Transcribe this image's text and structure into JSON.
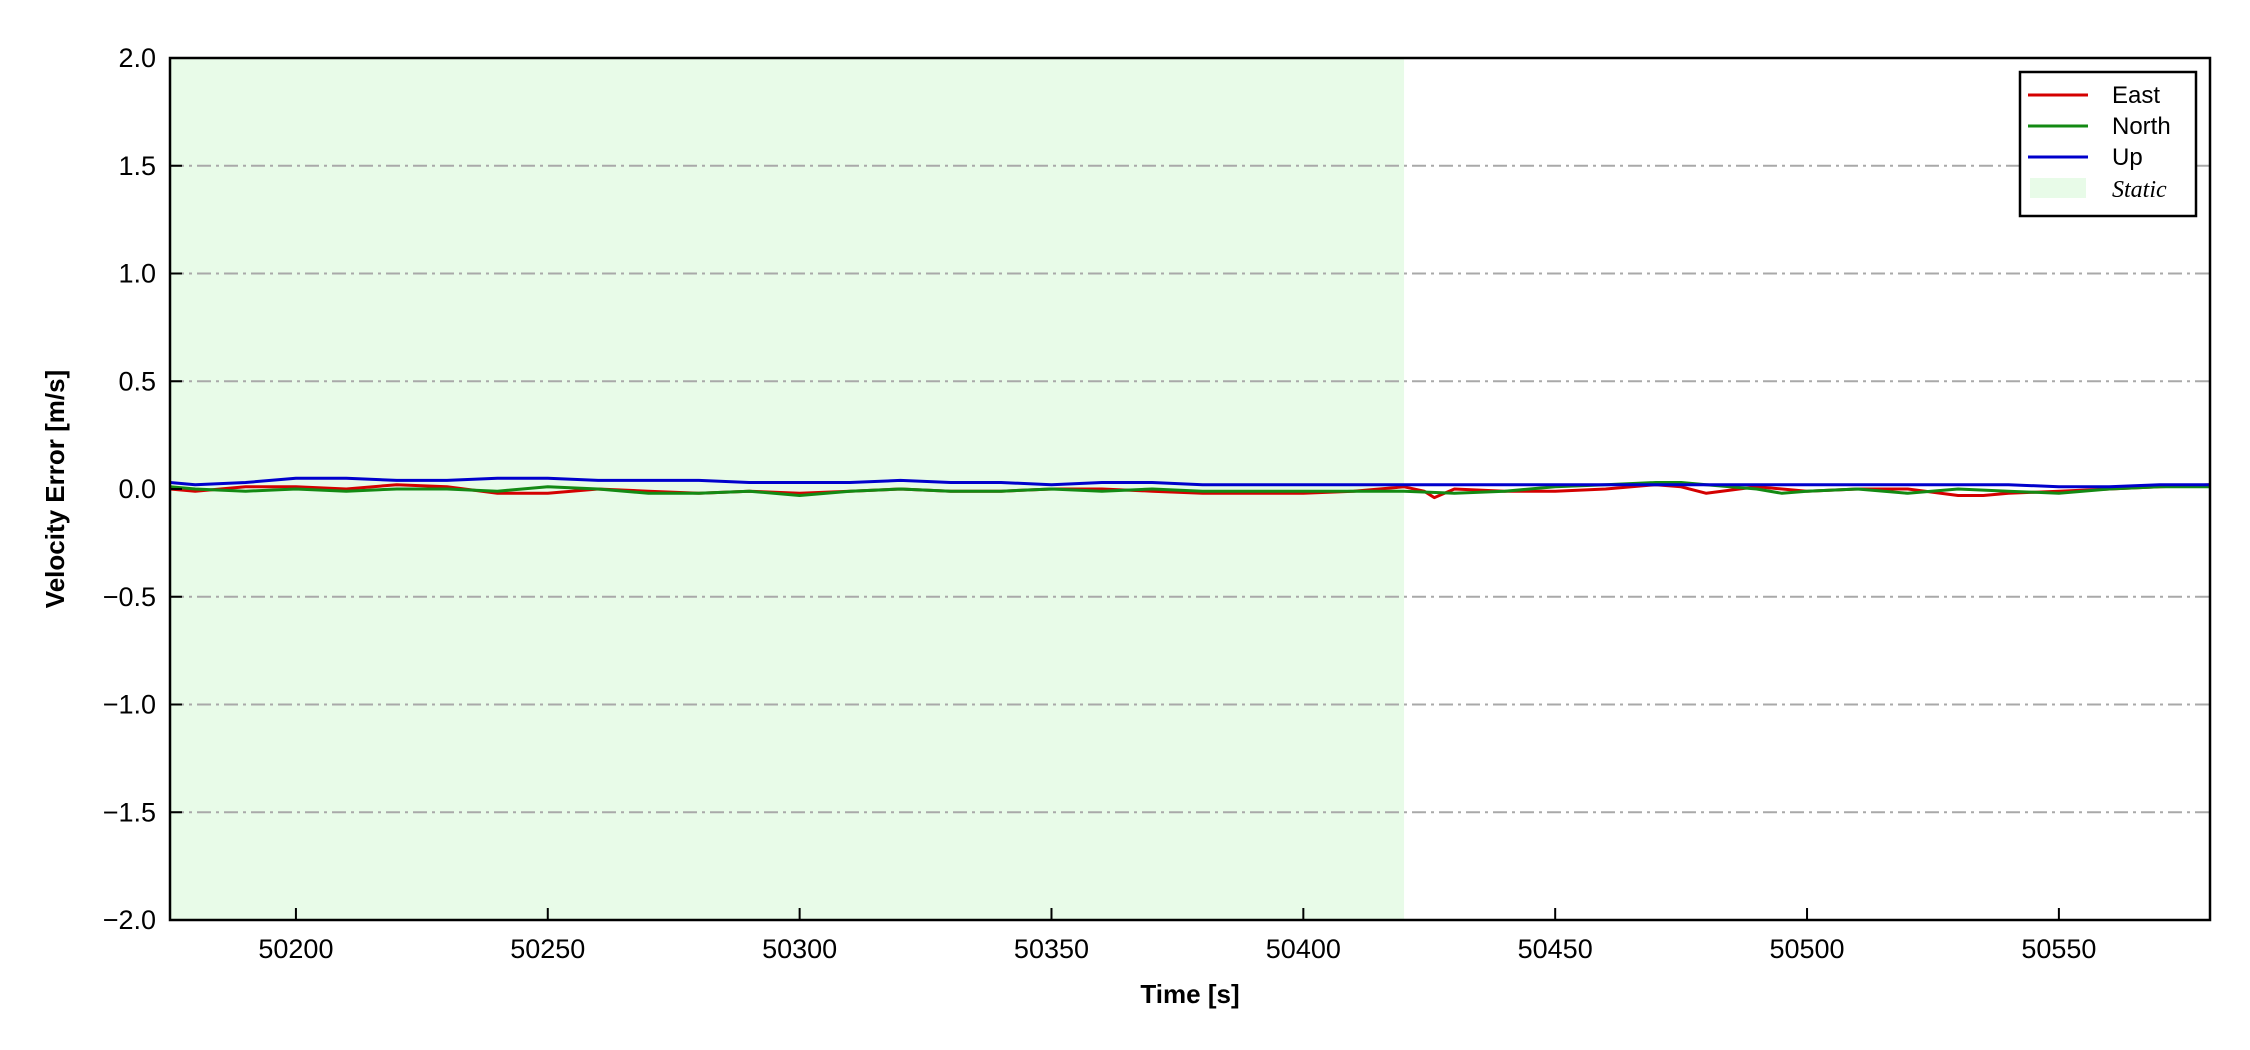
{
  "chart_data": {
    "type": "line",
    "title": "",
    "xlabel": "Time [s]",
    "ylabel": "Velocity Error [m/s]",
    "xlim": [
      50175,
      50580
    ],
    "ylim": [
      -2.0,
      2.0
    ],
    "x_ticks": [
      50200,
      50250,
      50300,
      50350,
      50400,
      50450,
      50500,
      50550
    ],
    "x_tick_labels": [
      "50200",
      "50250",
      "50300",
      "50350",
      "50400",
      "50450",
      "50500",
      "50550"
    ],
    "y_ticks": [
      -2.0,
      -1.5,
      -1.0,
      -0.5,
      0.0,
      0.5,
      1.0,
      1.5,
      2.0
    ],
    "y_tick_labels": [
      "−2.0",
      "−1.5",
      "−1.0",
      "−0.5",
      "0.0",
      "0.5",
      "1.0",
      "1.5",
      "2.0"
    ],
    "grid": "horizontal dash-dot",
    "legend_position": "top-right",
    "static_span": {
      "label": "Static",
      "x_start": 50175,
      "x_end": 50420,
      "color": "#e8fbe8"
    },
    "series": [
      {
        "name": "East",
        "color": "#d40000",
        "x": [
          50175,
          50180,
          50190,
          50200,
          50210,
          50220,
          50230,
          50240,
          50250,
          50260,
          50270,
          50280,
          50290,
          50300,
          50310,
          50320,
          50330,
          50340,
          50350,
          50360,
          50370,
          50380,
          50390,
          50400,
          50410,
          50420,
          50424,
          50426,
          50430,
          50440,
          50450,
          50460,
          50470,
          50475,
          50480,
          50490,
          50500,
          50510,
          50520,
          50530,
          50535,
          50540,
          50550,
          50560,
          50570,
          50580
        ],
        "values": [
          0.0,
          -0.01,
          0.01,
          0.01,
          0.0,
          0.02,
          0.01,
          -0.02,
          -0.02,
          0.0,
          -0.01,
          -0.02,
          -0.01,
          -0.02,
          -0.01,
          0.0,
          -0.01,
          -0.01,
          0.0,
          0.0,
          -0.01,
          -0.02,
          -0.02,
          -0.02,
          -0.01,
          0.01,
          -0.01,
          -0.04,
          0.0,
          -0.01,
          -0.01,
          0.0,
          0.02,
          0.01,
          -0.02,
          0.01,
          -0.01,
          0.0,
          0.0,
          -0.03,
          -0.03,
          -0.02,
          -0.01,
          0.0,
          0.01,
          0.02
        ]
      },
      {
        "name": "North",
        "color": "#138a13",
        "x": [
          50175,
          50180,
          50190,
          50200,
          50210,
          50220,
          50230,
          50240,
          50250,
          50260,
          50270,
          50280,
          50290,
          50300,
          50310,
          50320,
          50330,
          50340,
          50350,
          50360,
          50370,
          50380,
          50390,
          50400,
          50410,
          50420,
          50430,
          50440,
          50450,
          50460,
          50470,
          50475,
          50480,
          50490,
          50495,
          50500,
          50510,
          50520,
          50530,
          50540,
          50550,
          50560,
          50570,
          50580
        ],
        "values": [
          0.01,
          0.0,
          -0.01,
          0.0,
          -0.01,
          0.0,
          0.0,
          -0.01,
          0.01,
          0.0,
          -0.02,
          -0.02,
          -0.01,
          -0.03,
          -0.01,
          0.0,
          -0.01,
          -0.01,
          0.0,
          -0.01,
          0.0,
          -0.01,
          -0.01,
          -0.01,
          -0.01,
          -0.01,
          -0.02,
          -0.01,
          0.01,
          0.02,
          0.03,
          0.03,
          0.02,
          0.0,
          -0.02,
          -0.01,
          0.0,
          -0.02,
          0.0,
          -0.01,
          -0.02,
          0.0,
          0.01,
          0.01
        ]
      },
      {
        "name": "Up",
        "color": "#0000cc",
        "x": [
          50175,
          50180,
          50190,
          50200,
          50210,
          50220,
          50230,
          50240,
          50250,
          50260,
          50270,
          50280,
          50290,
          50300,
          50310,
          50320,
          50330,
          50340,
          50350,
          50360,
          50370,
          50380,
          50390,
          50400,
          50410,
          50420,
          50430,
          50440,
          50450,
          50460,
          50470,
          50480,
          50490,
          50500,
          50510,
          50520,
          50530,
          50540,
          50550,
          50560,
          50570,
          50580
        ],
        "values": [
          0.03,
          0.02,
          0.03,
          0.05,
          0.05,
          0.04,
          0.04,
          0.05,
          0.05,
          0.04,
          0.04,
          0.04,
          0.03,
          0.03,
          0.03,
          0.04,
          0.03,
          0.03,
          0.02,
          0.03,
          0.03,
          0.02,
          0.02,
          0.02,
          0.02,
          0.02,
          0.02,
          0.02,
          0.02,
          0.02,
          0.02,
          0.02,
          0.02,
          0.02,
          0.02,
          0.02,
          0.02,
          0.02,
          0.01,
          0.01,
          0.02,
          0.02
        ]
      }
    ]
  }
}
